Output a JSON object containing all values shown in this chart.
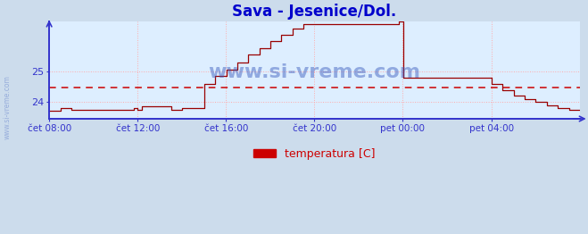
{
  "title": "Sava - Jesenice/Dol.",
  "title_color": "#0000cc",
  "title_fontsize": 12,
  "bg_color": "#ccdcec",
  "plot_bg_color": "#ddeeff",
  "line_color": "#990000",
  "grid_color": "#ffaaaa",
  "axis_color": "#3333cc",
  "avg_line_color": "#cc0000",
  "avg_line_value": 24.47,
  "legend_label": "temperatura [C]",
  "legend_color": "#cc0000",
  "watermark": "www.si-vreme.com",
  "watermark_color": "#3355bb",
  "yticks": [
    24,
    25
  ],
  "ylim": [
    23.45,
    26.65
  ],
  "xlim": [
    0,
    24.0
  ],
  "xtick_labels": [
    "čet 08:00",
    "čet 12:00",
    "čet 16:00",
    "čet 20:00",
    "pet 00:00",
    "pet 04:00"
  ],
  "xtick_positions": [
    0,
    4,
    8,
    12,
    16,
    20
  ],
  "time_pts": [
    0.0,
    0.5,
    0.51,
    1.0,
    1.01,
    3.8,
    3.81,
    4.0,
    4.01,
    4.2,
    4.21,
    5.5,
    5.51,
    6.0,
    6.01,
    7.0,
    7.01,
    7.5,
    7.51,
    8.0,
    8.01,
    8.5,
    8.51,
    9.0,
    9.01,
    9.5,
    9.51,
    10.0,
    10.01,
    10.5,
    10.51,
    11.0,
    11.01,
    11.5,
    11.51,
    12.0,
    13.5,
    13.51,
    15.8,
    15.81,
    16.0,
    16.01,
    17.5,
    17.51,
    20.0,
    20.01,
    20.5,
    20.51,
    21.0,
    21.01,
    21.5,
    21.51,
    22.0,
    22.01,
    22.5,
    22.51,
    23.0,
    23.01,
    23.5,
    23.51,
    24.0
  ],
  "temp_pts": [
    23.7,
    23.7,
    23.8,
    23.8,
    23.75,
    23.75,
    23.8,
    23.8,
    23.75,
    23.75,
    23.85,
    23.85,
    23.75,
    23.75,
    23.8,
    23.8,
    24.6,
    24.6,
    24.85,
    24.85,
    25.05,
    25.05,
    25.3,
    25.3,
    25.55,
    25.55,
    25.75,
    25.75,
    26.0,
    26.0,
    26.2,
    26.2,
    26.4,
    26.4,
    26.55,
    26.55,
    26.55,
    26.55,
    26.55,
    26.65,
    26.65,
    24.8,
    24.8,
    24.8,
    24.8,
    24.6,
    24.6,
    24.4,
    24.4,
    24.2,
    24.2,
    24.1,
    24.1,
    24.0,
    24.0,
    23.9,
    23.9,
    23.8,
    23.8,
    23.75,
    23.75
  ]
}
